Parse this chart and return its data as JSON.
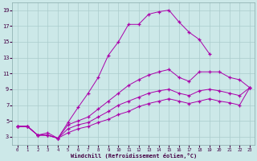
{
  "xlabel": "Windchill (Refroidissement éolien,°C)",
  "bg_color": "#cce8e8",
  "grid_color": "#aacccc",
  "line_color": "#aa00aa",
  "xlim": [
    -0.5,
    23.5
  ],
  "ylim": [
    2.0,
    20.0
  ],
  "xticks": [
    0,
    1,
    2,
    3,
    4,
    5,
    6,
    7,
    8,
    9,
    10,
    11,
    12,
    13,
    14,
    15,
    16,
    17,
    18,
    19,
    20,
    21,
    22,
    23
  ],
  "yticks": [
    3,
    5,
    7,
    9,
    11,
    13,
    15,
    17,
    19
  ],
  "series": [
    {
      "x": [
        0,
        1,
        2,
        3,
        4,
        5,
        6,
        7,
        8,
        9,
        10,
        11,
        12,
        13,
        14,
        15,
        16,
        17,
        18,
        19
      ],
      "y": [
        4.3,
        4.3,
        3.2,
        3.2,
        2.8,
        4.8,
        6.7,
        8.5,
        10.5,
        13.3,
        15.0,
        17.2,
        17.2,
        18.5,
        18.8,
        19.0,
        17.5,
        16.2,
        15.3,
        13.5
      ]
    },
    {
      "x": [
        0,
        1,
        2,
        3,
        4,
        5,
        6,
        7,
        8,
        9,
        10,
        11,
        12,
        13,
        14,
        15,
        16,
        17,
        18,
        19,
        20,
        21,
        22,
        23
      ],
      "y": [
        4.3,
        4.3,
        3.2,
        3.5,
        2.8,
        4.5,
        5.0,
        5.5,
        6.5,
        7.5,
        8.5,
        9.5,
        10.2,
        10.8,
        11.2,
        11.5,
        10.5,
        10.0,
        11.2,
        11.2,
        11.2,
        10.5,
        10.2,
        9.2
      ]
    },
    {
      "x": [
        0,
        1,
        2,
        3,
        4,
        5,
        6,
        7,
        8,
        9,
        10,
        11,
        12,
        13,
        14,
        15,
        16,
        17,
        18,
        19,
        20,
        21,
        22,
        23
      ],
      "y": [
        4.3,
        4.3,
        3.2,
        3.2,
        2.8,
        4.0,
        4.5,
        4.8,
        5.5,
        6.2,
        7.0,
        7.5,
        8.0,
        8.5,
        8.8,
        9.0,
        8.5,
        8.2,
        8.8,
        9.0,
        8.8,
        8.5,
        8.2,
        9.2
      ]
    },
    {
      "x": [
        0,
        1,
        2,
        3,
        4,
        5,
        6,
        7,
        8,
        9,
        10,
        11,
        12,
        13,
        14,
        15,
        16,
        17,
        18,
        19,
        20,
        21,
        22,
        23
      ],
      "y": [
        4.3,
        4.3,
        3.2,
        3.2,
        2.8,
        3.5,
        4.0,
        4.3,
        4.8,
        5.2,
        5.8,
        6.2,
        6.8,
        7.2,
        7.5,
        7.8,
        7.5,
        7.2,
        7.5,
        7.8,
        7.5,
        7.3,
        7.0,
        9.2
      ]
    }
  ]
}
